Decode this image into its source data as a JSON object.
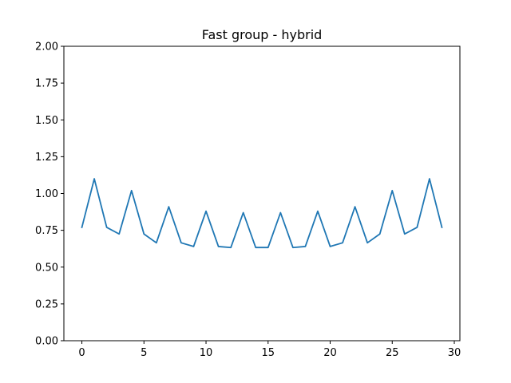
{
  "chart_data": {
    "type": "line",
    "title": "Fast group - hybrid",
    "xlabel": "",
    "ylabel": "",
    "xlim": [
      -1.45,
      30.45
    ],
    "ylim": [
      0,
      2
    ],
    "x_ticks": [
      0,
      5,
      10,
      15,
      20,
      25,
      30
    ],
    "x_tick_labels": [
      "0",
      "5",
      "10",
      "15",
      "20",
      "25",
      "30"
    ],
    "y_ticks": [
      0,
      0.25,
      0.5,
      0.75,
      1.0,
      1.25,
      1.5,
      1.75,
      2.0
    ],
    "y_tick_labels": [
      "0.00",
      "0.25",
      "0.50",
      "0.75",
      "1.00",
      "1.25",
      "1.50",
      "1.75",
      "2.00"
    ],
    "grid": false,
    "series": [
      {
        "color": "#1f77b4",
        "x": [
          0,
          1,
          2,
          3,
          4,
          5,
          6,
          7,
          8,
          9,
          10,
          11,
          12,
          13,
          14,
          15,
          16,
          17,
          18,
          19,
          20,
          21,
          22,
          23,
          24,
          25,
          26,
          27,
          28,
          29
        ],
        "values": [
          0.77,
          1.1,
          0.77,
          0.725,
          1.02,
          0.725,
          0.665,
          0.91,
          0.665,
          0.64,
          0.88,
          0.64,
          0.633,
          0.87,
          0.633,
          0.633,
          0.87,
          0.633,
          0.64,
          0.88,
          0.64,
          0.665,
          0.91,
          0.665,
          0.725,
          1.02,
          0.725,
          0.77,
          1.1,
          0.77
        ]
      }
    ]
  }
}
